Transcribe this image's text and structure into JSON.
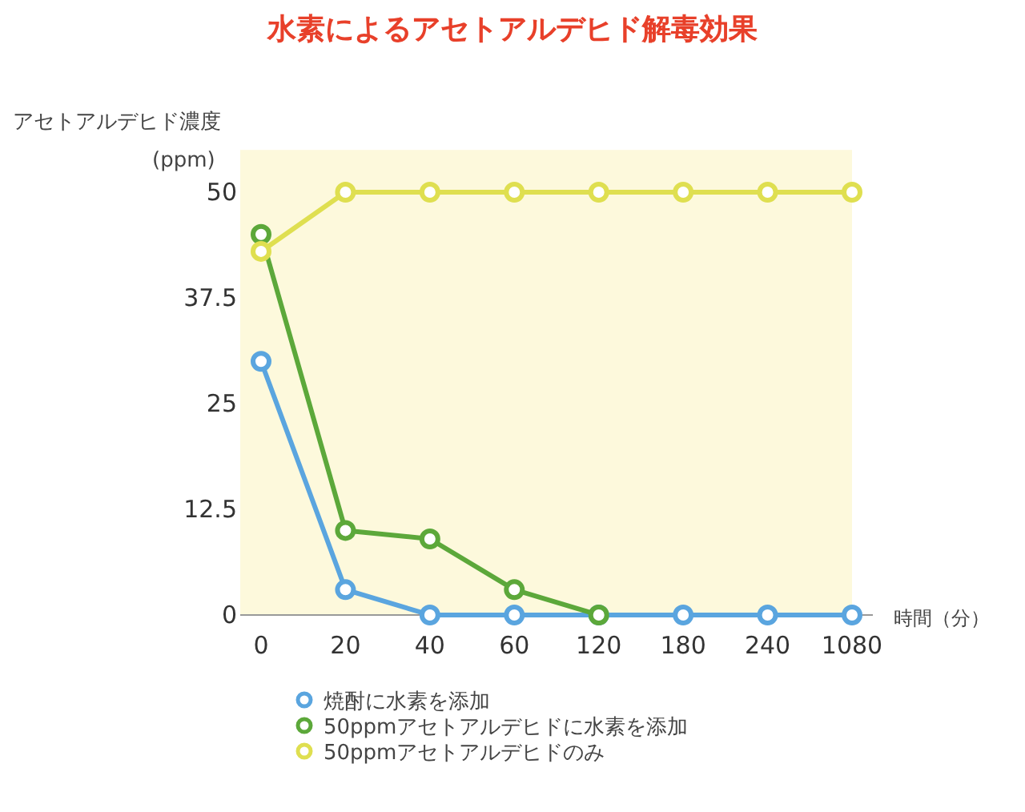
{
  "chart_data": {
    "type": "line",
    "title": "水素によるアセトアルデヒド解毒効果",
    "ylabel": "アセトアルデヒド濃度 (ppm)",
    "xlabel": "時間（分）",
    "categories": [
      "0",
      "20",
      "40",
      "60",
      "120",
      "180",
      "240",
      "1080"
    ],
    "ylim": [
      0,
      55
    ],
    "yticks": [
      0,
      12.5,
      25,
      37.5,
      50
    ],
    "grid": false,
    "legend": "bottom",
    "marker": "circle",
    "line_style": "solid",
    "series": [
      {
        "name": "焼酎に水素を添加",
        "color": "#5aa5df",
        "values": [
          30,
          3,
          0,
          0,
          0,
          0,
          0,
          0
        ]
      },
      {
        "name": "50ppmアセトアルデヒドに水素を添加",
        "color": "#5ca83a",
        "values": [
          45,
          10,
          9,
          3,
          0,
          null,
          null,
          null
        ]
      },
      {
        "name": "50ppmアセトアルデヒドのみ",
        "color": "#dfdf50",
        "values": [
          43,
          50,
          50,
          50,
          50,
          50,
          50,
          50
        ]
      }
    ]
  }
}
